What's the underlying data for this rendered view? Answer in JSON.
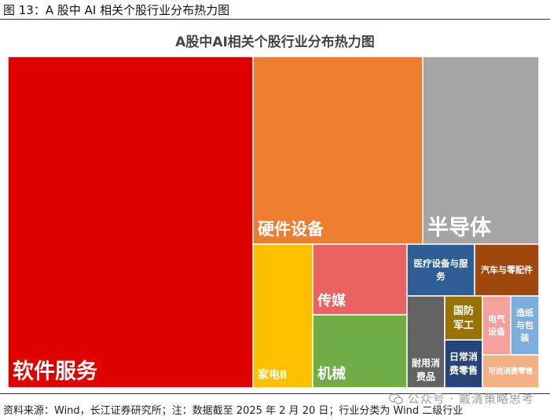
{
  "figure_label": "图 13：A 股中 AI 相关个股行业分布热力图",
  "source_note": "资料来源：Wind，长江证券研究所；注：数据截至 2025 年 2 月 20 日；行业分类为 Wind 二级行业",
  "watermark": "公众号 · 戴清策略思考",
  "chart_data": {
    "type": "treemap",
    "title": "A股中AI相关个股行业分布热力图",
    "nodes": [
      {
        "name": "软件服务",
        "color": "#e00000"
      },
      {
        "name": "硬件设备",
        "color": "#ed7d31"
      },
      {
        "name": "半导体",
        "color": "#a5a5a5"
      },
      {
        "name": "家电Ⅱ",
        "color": "#ffc000"
      },
      {
        "name": "传媒",
        "color": "#e96461"
      },
      {
        "name": "机械",
        "color": "#70ad47"
      },
      {
        "name": "医疗设备与服务",
        "color": "#2e5e95"
      },
      {
        "name": "汽车与零配件",
        "color": "#9e480e"
      },
      {
        "name": "耐用消费品",
        "color": "#636363"
      },
      {
        "name": "国防军工",
        "color": "#997300"
      },
      {
        "name": "日常消费零售",
        "color": "#264478"
      },
      {
        "name": "电气设备",
        "color": "#f4a09c"
      },
      {
        "name": "造纸与包装",
        "color": "#7cafdd"
      },
      {
        "name": "可选消费零售",
        "color": "#f4b183"
      }
    ]
  }
}
